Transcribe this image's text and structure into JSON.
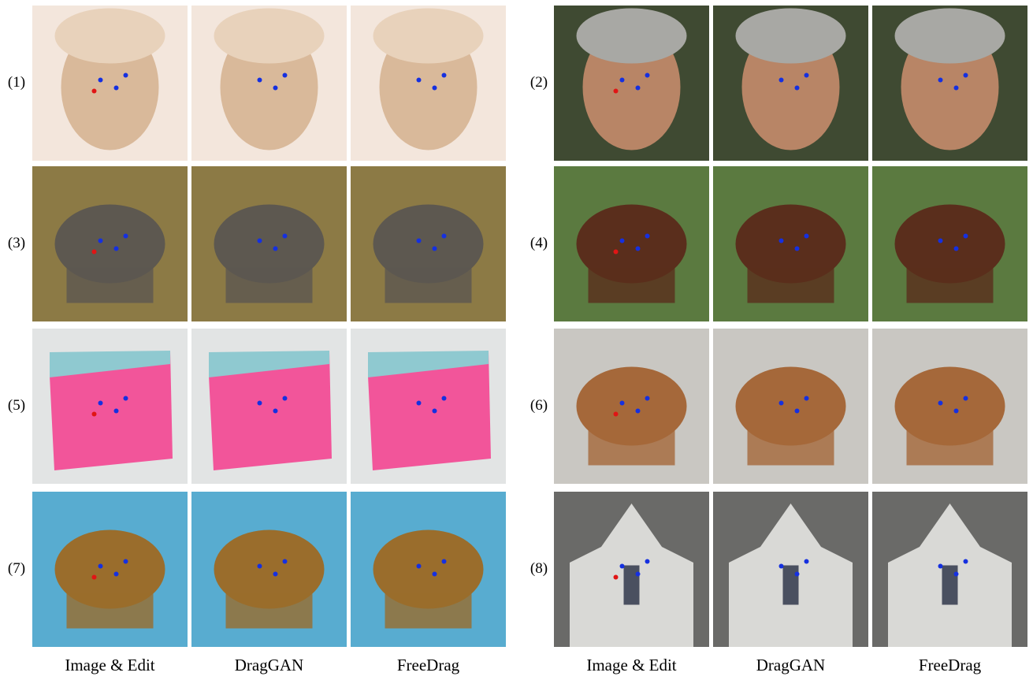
{
  "rows": [
    {
      "label": "(1)"
    },
    {
      "label": "(2)"
    },
    {
      "label": "(3)"
    },
    {
      "label": "(4)"
    },
    {
      "label": "(5)"
    },
    {
      "label": "(6)"
    },
    {
      "label": "(7)"
    },
    {
      "label": "(8)"
    }
  ],
  "captions": {
    "left": [
      "Image & Edit",
      "DragGAN",
      "FreeDrag"
    ],
    "right": [
      "Image & Edit",
      "DragGAN",
      "FreeDrag"
    ]
  }
}
